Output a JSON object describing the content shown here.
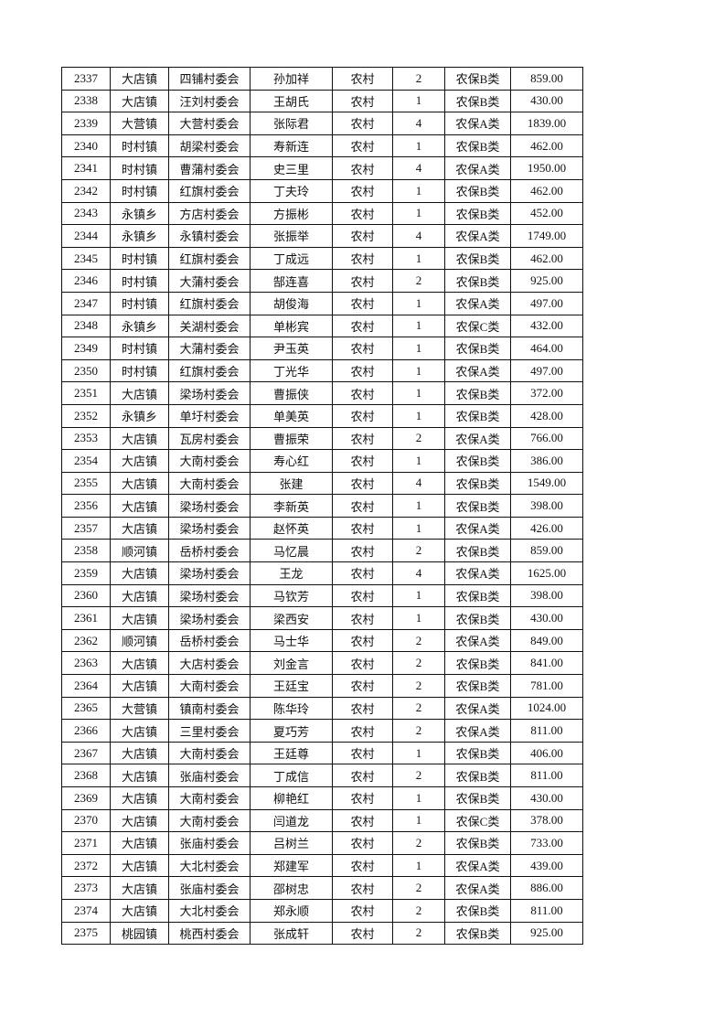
{
  "rows": [
    [
      "2337",
      "大店镇",
      "四铺村委会",
      "孙加祥",
      "农村",
      "2",
      "农保B类",
      "859.00"
    ],
    [
      "2338",
      "大店镇",
      "汪刘村委会",
      "王胡氏",
      "农村",
      "1",
      "农保B类",
      "430.00"
    ],
    [
      "2339",
      "大营镇",
      "大营村委会",
      "张际君",
      "农村",
      "4",
      "农保A类",
      "1839.00"
    ],
    [
      "2340",
      "时村镇",
      "胡梁村委会",
      "寿新连",
      "农村",
      "1",
      "农保B类",
      "462.00"
    ],
    [
      "2341",
      "时村镇",
      "曹蒲村委会",
      "史三里",
      "农村",
      "4",
      "农保A类",
      "1950.00"
    ],
    [
      "2342",
      "时村镇",
      "红旗村委会",
      "丁夫玲",
      "农村",
      "1",
      "农保B类",
      "462.00"
    ],
    [
      "2343",
      "永镇乡",
      "方店村委会",
      "方振彬",
      "农村",
      "1",
      "农保B类",
      "452.00"
    ],
    [
      "2344",
      "永镇乡",
      "永镇村委会",
      "张振举",
      "农村",
      "4",
      "农保A类",
      "1749.00"
    ],
    [
      "2345",
      "时村镇",
      "红旗村委会",
      "丁成远",
      "农村",
      "1",
      "农保B类",
      "462.00"
    ],
    [
      "2346",
      "时村镇",
      "大蒲村委会",
      "郜连喜",
      "农村",
      "2",
      "农保B类",
      "925.00"
    ],
    [
      "2347",
      "时村镇",
      "红旗村委会",
      "胡俊海",
      "农村",
      "1",
      "农保A类",
      "497.00"
    ],
    [
      "2348",
      "永镇乡",
      "关湖村委会",
      "单彬宾",
      "农村",
      "1",
      "农保C类",
      "432.00"
    ],
    [
      "2349",
      "时村镇",
      "大蒲村委会",
      "尹玉英",
      "农村",
      "1",
      "农保B类",
      "464.00"
    ],
    [
      "2350",
      "时村镇",
      "红旗村委会",
      "丁光华",
      "农村",
      "1",
      "农保A类",
      "497.00"
    ],
    [
      "2351",
      "大店镇",
      "梁场村委会",
      "曹振侠",
      "农村",
      "1",
      "农保B类",
      "372.00"
    ],
    [
      "2352",
      "永镇乡",
      "单圩村委会",
      "单美英",
      "农村",
      "1",
      "农保B类",
      "428.00"
    ],
    [
      "2353",
      "大店镇",
      "瓦房村委会",
      "曹振荣",
      "农村",
      "2",
      "农保A类",
      "766.00"
    ],
    [
      "2354",
      "大店镇",
      "大南村委会",
      "寿心红",
      "农村",
      "1",
      "农保B类",
      "386.00"
    ],
    [
      "2355",
      "大店镇",
      "大南村委会",
      "张建",
      "农村",
      "4",
      "农保B类",
      "1549.00"
    ],
    [
      "2356",
      "大店镇",
      "梁场村委会",
      "李新英",
      "农村",
      "1",
      "农保B类",
      "398.00"
    ],
    [
      "2357",
      "大店镇",
      "梁场村委会",
      "赵怀英",
      "农村",
      "1",
      "农保A类",
      "426.00"
    ],
    [
      "2358",
      "顺河镇",
      "岳桥村委会",
      "马忆晨",
      "农村",
      "2",
      "农保B类",
      "859.00"
    ],
    [
      "2359",
      "大店镇",
      "梁场村委会",
      "王龙",
      "农村",
      "4",
      "农保A类",
      "1625.00"
    ],
    [
      "2360",
      "大店镇",
      "梁场村委会",
      "马钦芳",
      "农村",
      "1",
      "农保B类",
      "398.00"
    ],
    [
      "2361",
      "大店镇",
      "梁场村委会",
      "梁西安",
      "农村",
      "1",
      "农保B类",
      "430.00"
    ],
    [
      "2362",
      "顺河镇",
      "岳桥村委会",
      "马士华",
      "农村",
      "2",
      "农保A类",
      "849.00"
    ],
    [
      "2363",
      "大店镇",
      "大店村委会",
      "刘金言",
      "农村",
      "2",
      "农保B类",
      "841.00"
    ],
    [
      "2364",
      "大店镇",
      "大南村委会",
      "王廷宝",
      "农村",
      "2",
      "农保B类",
      "781.00"
    ],
    [
      "2365",
      "大营镇",
      "镇南村委会",
      "陈华玲",
      "农村",
      "2",
      "农保A类",
      "1024.00"
    ],
    [
      "2366",
      "大店镇",
      "三里村委会",
      "夏巧芳",
      "农村",
      "2",
      "农保A类",
      "811.00"
    ],
    [
      "2367",
      "大店镇",
      "大南村委会",
      "王廷尊",
      "农村",
      "1",
      "农保B类",
      "406.00"
    ],
    [
      "2368",
      "大店镇",
      "张庙村委会",
      "丁成信",
      "农村",
      "2",
      "农保B类",
      "811.00"
    ],
    [
      "2369",
      "大店镇",
      "大南村委会",
      "柳艳红",
      "农村",
      "1",
      "农保B类",
      "430.00"
    ],
    [
      "2370",
      "大店镇",
      "大南村委会",
      "闫道龙",
      "农村",
      "1",
      "农保C类",
      "378.00"
    ],
    [
      "2371",
      "大店镇",
      "张庙村委会",
      "吕树兰",
      "农村",
      "2",
      "农保B类",
      "733.00"
    ],
    [
      "2372",
      "大店镇",
      "大北村委会",
      "郑建军",
      "农村",
      "1",
      "农保A类",
      "439.00"
    ],
    [
      "2373",
      "大店镇",
      "张庙村委会",
      "邵树忠",
      "农村",
      "2",
      "农保A类",
      "886.00"
    ],
    [
      "2374",
      "大店镇",
      "大北村委会",
      "郑永顺",
      "农村",
      "2",
      "农保B类",
      "811.00"
    ],
    [
      "2375",
      "桃园镇",
      "桃西村委会",
      "张成轩",
      "农村",
      "2",
      "农保B类",
      "925.00"
    ]
  ]
}
